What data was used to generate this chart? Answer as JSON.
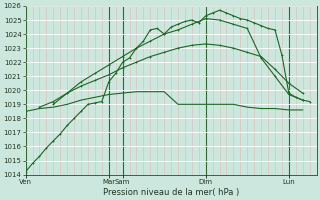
{
  "xlabel": "Pression niveau de la mer( hPa )",
  "ylim": [
    1014,
    1026
  ],
  "yticks": [
    1014,
    1015,
    1016,
    1017,
    1018,
    1019,
    1020,
    1021,
    1022,
    1023,
    1024,
    1025,
    1026
  ],
  "background_color": "#cce8de",
  "grid_h_color": "#ffffff",
  "grid_v_minor_color": "#ddb8b8",
  "grid_v_major_color": "#336633",
  "day_positions": [
    0,
    12,
    14,
    26,
    38
  ],
  "day_labels": [
    "Ven",
    "Mar",
    "Sam",
    "Dim",
    "Lun"
  ],
  "n_minor_cols": 42,
  "line1_x": [
    0,
    1,
    2,
    3,
    4,
    5,
    6,
    7,
    8,
    9,
    10,
    11,
    12,
    13,
    14,
    15,
    16,
    17,
    18,
    19,
    20,
    21,
    22,
    23,
    24,
    25,
    26,
    27,
    28,
    29,
    30,
    31,
    32,
    33,
    34,
    35,
    36,
    37,
    38,
    39,
    40,
    41
  ],
  "line1_y": [
    1014.2,
    1014.8,
    1015.3,
    1015.9,
    1016.4,
    1016.9,
    1017.5,
    1018.0,
    1018.5,
    1019.0,
    1019.1,
    1019.2,
    1020.6,
    1021.2,
    1022.0,
    1022.3,
    1023.0,
    1023.5,
    1024.3,
    1024.4,
    1024.0,
    1024.5,
    1024.7,
    1024.9,
    1025.0,
    1024.8,
    1025.3,
    1025.5,
    1025.7,
    1025.5,
    1025.3,
    1025.1,
    1025.0,
    1024.8,
    1024.6,
    1024.4,
    1024.3,
    1022.5,
    1019.8,
    1019.5,
    1019.3,
    1019.2
  ],
  "line2_x": [
    0,
    2,
    4,
    6,
    8,
    10,
    12,
    14,
    16,
    18,
    20,
    22,
    24,
    26,
    28,
    30,
    32,
    34,
    36,
    38,
    40
  ],
  "line2_y": [
    1018.5,
    1018.7,
    1018.8,
    1019.0,
    1019.3,
    1019.5,
    1019.7,
    1019.8,
    1019.9,
    1019.9,
    1019.9,
    1019.0,
    1019.0,
    1019.0,
    1019.0,
    1019.0,
    1018.8,
    1018.7,
    1018.7,
    1018.6,
    1018.6
  ],
  "line3_x": [
    2,
    4,
    6,
    8,
    10,
    12,
    14,
    16,
    18,
    20,
    22,
    24,
    26,
    28,
    30,
    32,
    34,
    36,
    38,
    40
  ],
  "line3_y": [
    1018.8,
    1019.2,
    1019.8,
    1020.3,
    1020.7,
    1021.1,
    1021.6,
    1022.0,
    1022.4,
    1022.7,
    1023.0,
    1023.2,
    1023.3,
    1023.2,
    1023.0,
    1022.7,
    1022.4,
    1021.5,
    1020.5,
    1019.8
  ],
  "line4_x": [
    4,
    6,
    8,
    10,
    12,
    14,
    16,
    18,
    20,
    22,
    24,
    26,
    28,
    30,
    32,
    34,
    36,
    38,
    40
  ],
  "line4_y": [
    1019.0,
    1019.8,
    1020.6,
    1021.2,
    1021.8,
    1022.4,
    1023.0,
    1023.5,
    1024.0,
    1024.3,
    1024.7,
    1025.1,
    1025.0,
    1024.7,
    1024.4,
    1022.3,
    1021.0,
    1019.7,
    1019.3
  ]
}
